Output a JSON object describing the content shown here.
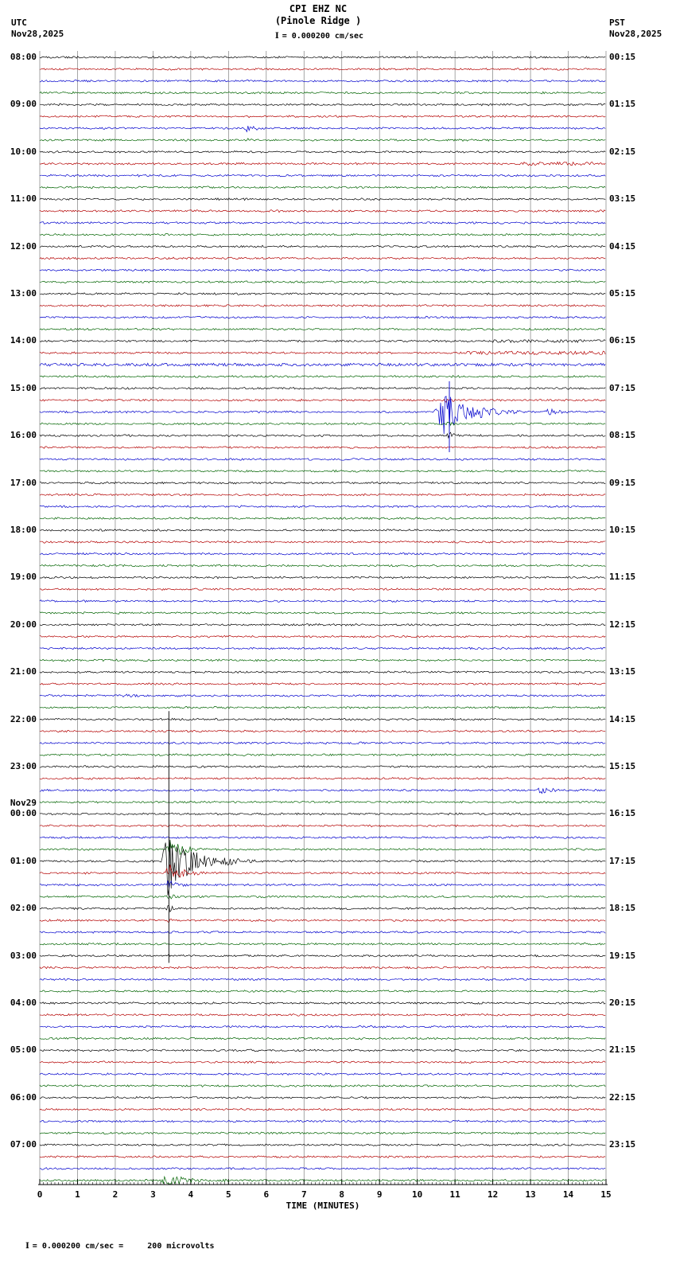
{
  "header": {
    "station_line": "CPI EHZ NC",
    "location_line": "(Pinole Ridge )",
    "scale_label": "= 0.000200 cm/sec",
    "left_tz": "UTC",
    "left_date": "Nov28,2025",
    "right_tz": "PST",
    "right_date": "Nov28,2025"
  },
  "axis": {
    "title": "TIME (MINUTES)",
    "ticks": [
      "0",
      "1",
      "2",
      "3",
      "4",
      "5",
      "6",
      "7",
      "8",
      "9",
      "10",
      "11",
      "12",
      "13",
      "14",
      "15"
    ]
  },
  "footer": {
    "text": "= 0.000200 cm/sec =     200 microvolts"
  },
  "left_labels": [
    {
      "row": 0,
      "text": "08:00"
    },
    {
      "row": 4,
      "text": "09:00"
    },
    {
      "row": 8,
      "text": "10:00"
    },
    {
      "row": 12,
      "text": "11:00"
    },
    {
      "row": 16,
      "text": "12:00"
    },
    {
      "row": 20,
      "text": "13:00"
    },
    {
      "row": 24,
      "text": "14:00"
    },
    {
      "row": 28,
      "text": "15:00"
    },
    {
      "row": 32,
      "text": "16:00"
    },
    {
      "row": 36,
      "text": "17:00"
    },
    {
      "row": 40,
      "text": "18:00"
    },
    {
      "row": 44,
      "text": "19:00"
    },
    {
      "row": 48,
      "text": "20:00"
    },
    {
      "row": 52,
      "text": "21:00"
    },
    {
      "row": 56,
      "text": "22:00"
    },
    {
      "row": 60,
      "text": "23:00"
    },
    {
      "row": 63.1,
      "text": "Nov29"
    },
    {
      "row": 64,
      "text": "00:00"
    },
    {
      "row": 68,
      "text": "01:00"
    },
    {
      "row": 72,
      "text": "02:00"
    },
    {
      "row": 76,
      "text": "03:00"
    },
    {
      "row": 80,
      "text": "04:00"
    },
    {
      "row": 84,
      "text": "05:00"
    },
    {
      "row": 88,
      "text": "06:00"
    },
    {
      "row": 92,
      "text": "07:00"
    }
  ],
  "right_labels": [
    {
      "row": 0,
      "text": "00:15"
    },
    {
      "row": 4,
      "text": "01:15"
    },
    {
      "row": 8,
      "text": "02:15"
    },
    {
      "row": 12,
      "text": "03:15"
    },
    {
      "row": 16,
      "text": "04:15"
    },
    {
      "row": 20,
      "text": "05:15"
    },
    {
      "row": 24,
      "text": "06:15"
    },
    {
      "row": 28,
      "text": "07:15"
    },
    {
      "row": 32,
      "text": "08:15"
    },
    {
      "row": 36,
      "text": "09:15"
    },
    {
      "row": 40,
      "text": "10:15"
    },
    {
      "row": 44,
      "text": "11:15"
    },
    {
      "row": 48,
      "text": "12:15"
    },
    {
      "row": 52,
      "text": "13:15"
    },
    {
      "row": 56,
      "text": "14:15"
    },
    {
      "row": 60,
      "text": "15:15"
    },
    {
      "row": 64,
      "text": "16:15"
    },
    {
      "row": 68,
      "text": "17:15"
    },
    {
      "row": 72,
      "text": "18:15"
    },
    {
      "row": 76,
      "text": "19:15"
    },
    {
      "row": 80,
      "text": "20:15"
    },
    {
      "row": 84,
      "text": "21:15"
    },
    {
      "row": 88,
      "text": "22:15"
    },
    {
      "row": 92,
      "text": "23:15"
    }
  ],
  "chart_data": {
    "type": "line",
    "title": "CPI EHZ NC (Pinole Ridge) helicorder, 15-minute traces",
    "xlabel": "TIME (MINUTES)",
    "x_range": [
      0,
      15
    ],
    "rows": 96,
    "minutes_per_row": 15,
    "start_utc": "Nov28,2025 08:00",
    "end_utc": "Nov29,2025 08:00",
    "row_colors": [
      "#000000",
      "#b40000",
      "#0000cd",
      "#006400"
    ],
    "grid_color": "#808080",
    "scale_cm_per_sec": 0.0002,
    "scale_microvolts": 200,
    "events": [
      {
        "row": 6,
        "type": "burst",
        "x0": 5.35,
        "x1": 6.15,
        "amp": 7
      },
      {
        "row": 7,
        "type": "burst",
        "x0": 5.45,
        "x1": 5.95,
        "amp": 2.2
      },
      {
        "row": 9,
        "type": "elevated",
        "x0": 12.8,
        "x1": 14.7,
        "amp": 2.2
      },
      {
        "row": 10,
        "type": "burst",
        "x0": 2.5,
        "x1": 3.5,
        "amp": 2.4
      },
      {
        "row": 13,
        "type": "burst",
        "x0": 6.2,
        "x1": 6.8,
        "amp": 2.4
      },
      {
        "row": 24,
        "type": "elevated",
        "x0": 12.0,
        "x1": 15,
        "amp": 1.8
      },
      {
        "row": 25,
        "type": "elevated",
        "x0": 11.3,
        "x1": 15,
        "amp": 2.2
      },
      {
        "row": 26,
        "type": "elevated",
        "x0": 0,
        "x1": 15,
        "amp": 1.8
      },
      {
        "row": 29,
        "type": "burst",
        "x0": 10.7,
        "x1": 11.3,
        "amp": 3.5
      },
      {
        "row": 30,
        "type": "burst",
        "x0": 10.45,
        "x1": 12.3,
        "amp": 30
      },
      {
        "row": 30,
        "type": "burst",
        "x0": 12.3,
        "x1": 13.2,
        "amp": 5
      },
      {
        "row": 30,
        "type": "burst",
        "x0": 13.3,
        "x1": 14.4,
        "amp": 5.5
      },
      {
        "row": 31,
        "type": "burst",
        "x0": 10.7,
        "x1": 11.4,
        "amp": 4
      },
      {
        "row": 32,
        "type": "burst",
        "x0": 10.75,
        "x1": 11.3,
        "amp": 6
      },
      {
        "row": 33,
        "type": "burst",
        "x0": 10.8,
        "x1": 11.15,
        "amp": 2.5
      },
      {
        "type": "vspike",
        "x": 10.85,
        "rowTop": 27.4,
        "rowBot": 33.4,
        "colorIndex": 2
      },
      {
        "row": 50,
        "type": "burst",
        "x0": 11.4,
        "x1": 11.9,
        "amp": 2
      },
      {
        "row": 54,
        "type": "burst",
        "x0": 2.0,
        "x1": 3.6,
        "amp": 3
      },
      {
        "row": 58,
        "type": "burst",
        "x0": 11.5,
        "x1": 12.0,
        "amp": 2
      },
      {
        "row": 62,
        "type": "burst",
        "x0": 13.15,
        "x1": 14.15,
        "amp": 5.5
      },
      {
        "row": 67,
        "type": "burst",
        "x0": 3.3,
        "x1": 4.35,
        "amp": 14
      },
      {
        "row": 68,
        "type": "burst",
        "x0": 3.22,
        "x1": 4.7,
        "amp": 45
      },
      {
        "row": 68,
        "type": "burst",
        "x0": 4.7,
        "x1": 6.3,
        "amp": 7
      },
      {
        "row": 69,
        "type": "burst",
        "x0": 3.28,
        "x1": 4.5,
        "amp": 12
      },
      {
        "row": 70,
        "type": "burst",
        "x0": 3.3,
        "x1": 4.2,
        "amp": 7
      },
      {
        "row": 71,
        "type": "burst",
        "x0": 3.35,
        "x1": 4.0,
        "amp": 4
      },
      {
        "row": 72,
        "type": "burst",
        "x0": 3.3,
        "x1": 3.95,
        "amp": 6
      },
      {
        "row": 73,
        "type": "burst",
        "x0": 3.35,
        "x1": 3.8,
        "amp": 3
      },
      {
        "row": 76,
        "type": "burst",
        "x0": 3.35,
        "x1": 3.75,
        "amp": 3
      },
      {
        "type": "vspike",
        "x": 3.42,
        "rowTop": 55.3,
        "rowBot": 76.6,
        "colorIndex": 0
      },
      {
        "row": 95,
        "type": "burst",
        "x0": 3.15,
        "x1": 4.7,
        "amp": 9
      },
      {
        "row": 95,
        "type": "burst",
        "x0": 4.7,
        "x1": 5.4,
        "amp": 3
      }
    ]
  }
}
